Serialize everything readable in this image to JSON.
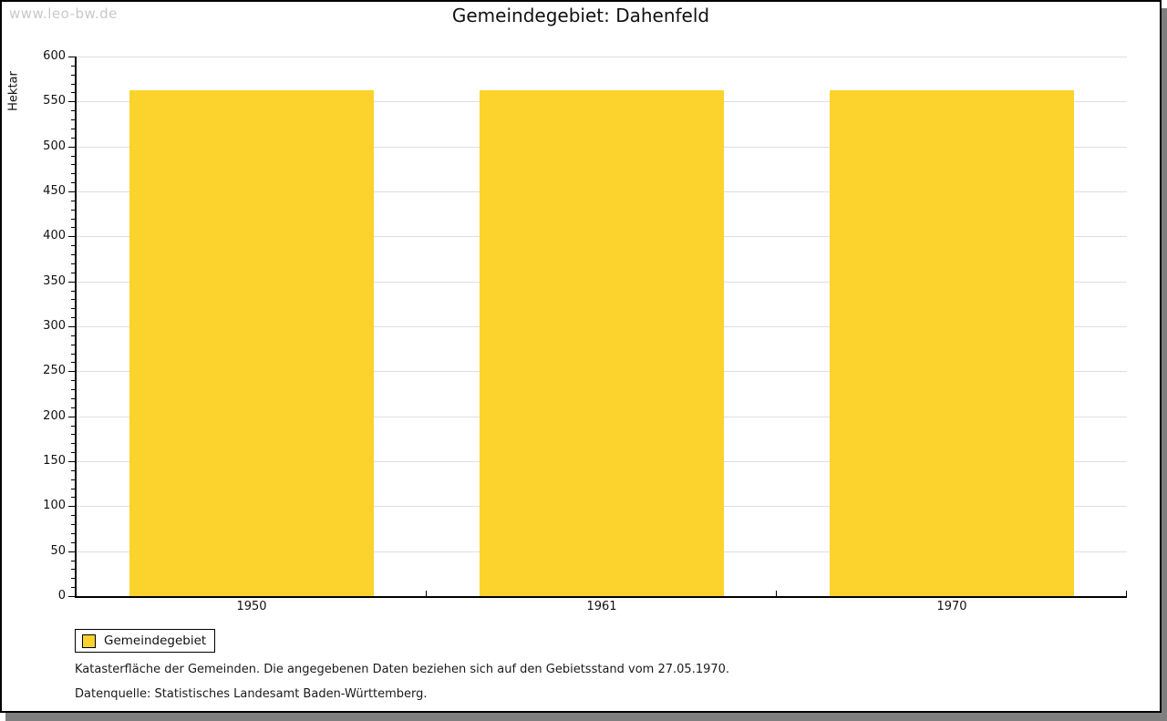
{
  "watermark": {
    "text": "www.leo-bw.de"
  },
  "title": "Gemeindegebiet: Dahenfeld",
  "chart_data": {
    "type": "bar",
    "title": "Gemeindegebiet: Dahenfeld",
    "categories": [
      "1950",
      "1961",
      "1970"
    ],
    "series": [
      {
        "name": "Gemeindegebiet",
        "values": [
          562,
          562,
          562
        ]
      }
    ],
    "xlabel": "",
    "ylabel": "Hektar",
    "ylim": [
      0,
      600
    ],
    "y_major_step": 50,
    "y_minor_step": 10,
    "bar_width_frac": 0.7,
    "bar_color": "#FCD32D",
    "grid": true,
    "grid_color": "#dedede",
    "legend_position": "bottom-left"
  },
  "legend": {
    "label": "Gemeindegebiet",
    "swatch_color": "#FCD32D"
  },
  "footer": {
    "line1": "Katasterfläche der Gemeinden. Die angegebenen Daten beziehen sich auf den Gebietsstand vom 27.05.1970.",
    "line2": "Datenquelle: Statistisches Landesamt Baden-Württemberg."
  },
  "colors": {
    "bar": "#FCD32D",
    "grid": "#dedede",
    "axis": "#000000",
    "watermark": "#c9c9c9",
    "frame_border": "#000000",
    "frame_shadow": "#7f7f7f"
  }
}
